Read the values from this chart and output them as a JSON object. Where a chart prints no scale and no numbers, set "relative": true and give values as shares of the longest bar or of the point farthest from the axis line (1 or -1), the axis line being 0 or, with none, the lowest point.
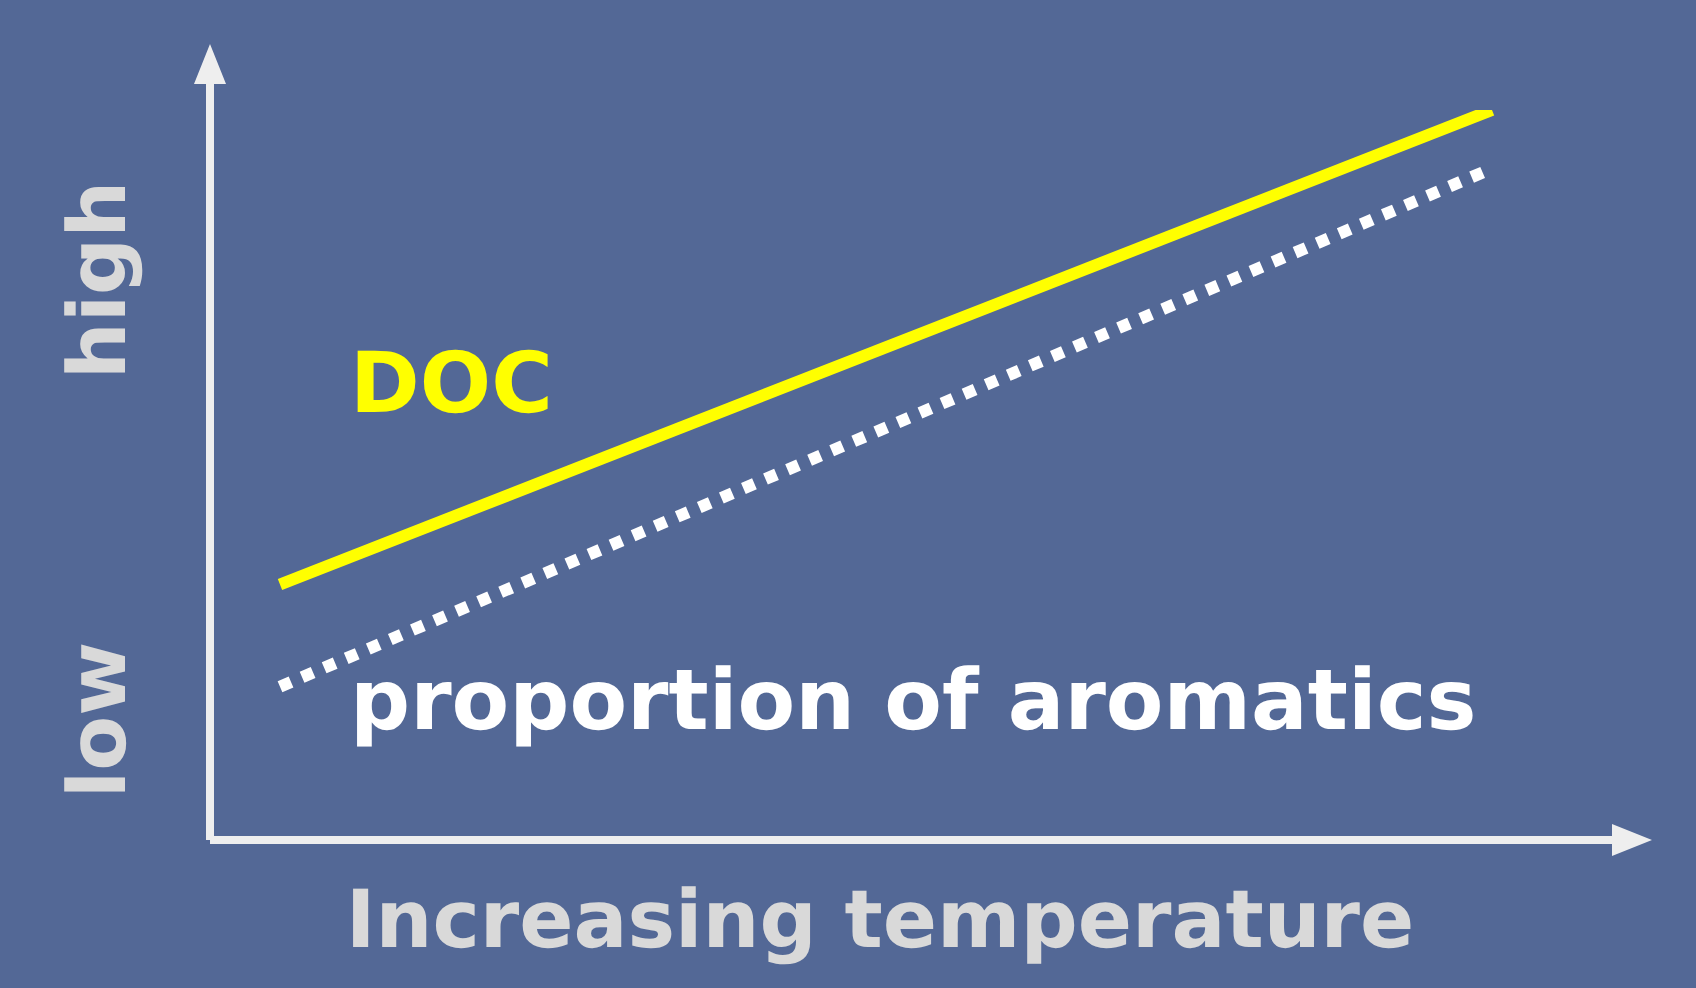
{
  "chart_data": {
    "type": "line",
    "xlabel": "Increasing temperature",
    "relative": true,
    "categories": [
      null,
      null
    ],
    "series": [
      {
        "name": "DOC",
        "color": "#ffff00",
        "values": [
          0.35,
          1
        ],
        "line_style": "solid"
      },
      {
        "name": "proportion of aromatics",
        "color": "#ffffff",
        "values": [
          0.21,
          0.92
        ],
        "line_style": "dotted"
      }
    ],
    "annotations": [
      "high",
      "low"
    ],
    "legend": false,
    "marker": "none"
  }
}
